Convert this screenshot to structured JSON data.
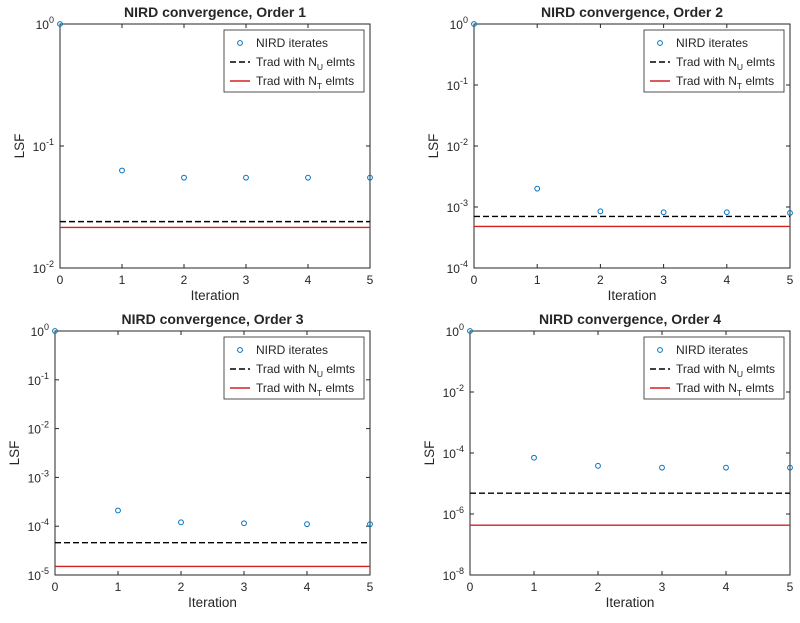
{
  "colors": {
    "axis": "#262626",
    "markers": "#0072BD",
    "trad_nu": "#000000",
    "trad_nt": "#D62020"
  },
  "chart_data": [
    {
      "type": "scatter",
      "title": "NIRD convergence, Order 1",
      "xlabel": "Iteration",
      "ylabel": "LSF",
      "yscale": "log",
      "xlim": [
        0,
        5
      ],
      "ylim": [
        0.01,
        1
      ],
      "x_ticks": [
        "0",
        "1",
        "2",
        "3",
        "4",
        "5"
      ],
      "y_ticks": [
        {
          "base": "10",
          "exp": "-2"
        },
        {
          "base": "10",
          "exp": "-1"
        },
        {
          "base": "10",
          "exp": "0"
        }
      ],
      "y_tick_values": [
        0.01,
        0.1,
        1
      ],
      "legend_position": "top-right",
      "series": [
        {
          "name": "NIRD iterates",
          "kind": "markers",
          "x": [
            0,
            1,
            2,
            3,
            4,
            5
          ],
          "y": [
            1,
            0.063,
            0.055,
            0.055,
            0.055,
            0.055
          ]
        },
        {
          "name": "Trad with N_U elmts",
          "kind": "hline-dashed",
          "y": 0.024
        },
        {
          "name": "Trad with N_T elmts",
          "kind": "hline",
          "y": 0.0215
        }
      ],
      "legend": [
        {
          "prefix": "NIRD iterates",
          "sub": "",
          "suffix": ""
        },
        {
          "prefix": "Trad with N",
          "sub": "U",
          "suffix": " elmts"
        },
        {
          "prefix": "Trad with N",
          "sub": "T",
          "suffix": " elmts"
        }
      ]
    },
    {
      "type": "scatter",
      "title": "NIRD convergence, Order 2",
      "xlabel": "Iteration",
      "ylabel": "LSF",
      "yscale": "log",
      "xlim": [
        0,
        5
      ],
      "ylim": [
        0.0001,
        1
      ],
      "x_ticks": [
        "0",
        "1",
        "2",
        "3",
        "4",
        "5"
      ],
      "y_ticks": [
        {
          "base": "10",
          "exp": "-4"
        },
        {
          "base": "10",
          "exp": "-3"
        },
        {
          "base": "10",
          "exp": "-2"
        },
        {
          "base": "10",
          "exp": "-1"
        },
        {
          "base": "10",
          "exp": "0"
        }
      ],
      "y_tick_values": [
        0.0001,
        0.001,
        0.01,
        0.1,
        1
      ],
      "legend_position": "top-right",
      "series": [
        {
          "name": "NIRD iterates",
          "kind": "markers",
          "x": [
            0,
            1,
            2,
            3,
            4,
            5
          ],
          "y": [
            1,
            0.002,
            0.00085,
            0.00082,
            0.00082,
            0.0008
          ]
        },
        {
          "name": "Trad with N_U elmts",
          "kind": "hline-dashed",
          "y": 0.0007
        },
        {
          "name": "Trad with N_T elmts",
          "kind": "hline",
          "y": 0.00048
        }
      ],
      "legend": [
        {
          "prefix": "NIRD iterates",
          "sub": "",
          "suffix": ""
        },
        {
          "prefix": "Trad with N",
          "sub": "U",
          "suffix": " elmts"
        },
        {
          "prefix": "Trad with N",
          "sub": "T",
          "suffix": " elmts"
        }
      ]
    },
    {
      "type": "scatter",
      "title": "NIRD convergence, Order 3",
      "xlabel": "Iteration",
      "ylabel": "LSF",
      "yscale": "log",
      "xlim": [
        0,
        5
      ],
      "ylim": [
        1e-05,
        1
      ],
      "x_ticks": [
        "0",
        "1",
        "2",
        "3",
        "4",
        "5"
      ],
      "y_ticks": [
        {
          "base": "10",
          "exp": "-5"
        },
        {
          "base": "10",
          "exp": "-4"
        },
        {
          "base": "10",
          "exp": "-3"
        },
        {
          "base": "10",
          "exp": "-2"
        },
        {
          "base": "10",
          "exp": "-1"
        },
        {
          "base": "10",
          "exp": "0"
        }
      ],
      "y_tick_values": [
        1e-05,
        0.0001,
        0.001,
        0.01,
        0.1,
        1
      ],
      "legend_position": "top-right",
      "series": [
        {
          "name": "NIRD iterates",
          "kind": "markers",
          "x": [
            0,
            1,
            2,
            3,
            4,
            5
          ],
          "y": [
            1,
            0.00021,
            0.00012,
            0.000115,
            0.00011,
            0.00011
          ]
        },
        {
          "name": "Trad with N_U elmts",
          "kind": "hline-dashed",
          "y": 4.6e-05
        },
        {
          "name": "Trad with N_T elmts",
          "kind": "hline",
          "y": 1.5e-05
        }
      ],
      "legend": [
        {
          "prefix": "NIRD iterates",
          "sub": "",
          "suffix": ""
        },
        {
          "prefix": "Trad with N",
          "sub": "U",
          "suffix": " elmts"
        },
        {
          "prefix": "Trad with N",
          "sub": "T",
          "suffix": " elmts"
        }
      ]
    },
    {
      "type": "scatter",
      "title": "NIRD convergence, Order 4",
      "xlabel": "Iteration",
      "ylabel": "LSF",
      "yscale": "log",
      "xlim": [
        0,
        5
      ],
      "ylim": [
        1e-08,
        1
      ],
      "x_ticks": [
        "0",
        "1",
        "2",
        "3",
        "4",
        "5"
      ],
      "y_ticks": [
        {
          "base": "10",
          "exp": "-8"
        },
        {
          "base": "10",
          "exp": "-6"
        },
        {
          "base": "10",
          "exp": "-4"
        },
        {
          "base": "10",
          "exp": "-2"
        },
        {
          "base": "10",
          "exp": "0"
        }
      ],
      "y_tick_values": [
        1e-08,
        1e-06,
        0.0001,
        0.01,
        1
      ],
      "legend_position": "top-right",
      "series": [
        {
          "name": "NIRD iterates",
          "kind": "markers",
          "x": [
            0,
            1,
            2,
            3,
            4,
            5
          ],
          "y": [
            1,
            7e-05,
            3.8e-05,
            3.3e-05,
            3.3e-05,
            3.3e-05
          ]
        },
        {
          "name": "Trad with N_U elmts",
          "kind": "hline-dashed",
          "y": 4.8e-06
        },
        {
          "name": "Trad with N_T elmts",
          "kind": "hline",
          "y": 4.3e-07
        }
      ],
      "legend": [
        {
          "prefix": "NIRD iterates",
          "sub": "",
          "suffix": ""
        },
        {
          "prefix": "Trad with N",
          "sub": "U",
          "suffix": " elmts"
        },
        {
          "prefix": "Trad with N",
          "sub": "T",
          "suffix": " elmts"
        }
      ]
    }
  ]
}
